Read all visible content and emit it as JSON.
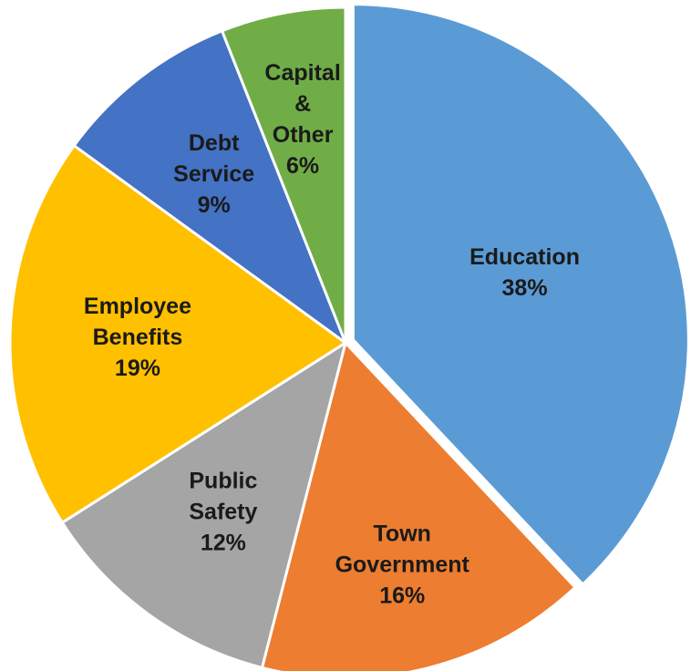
{
  "chart_data": {
    "type": "pie",
    "title": "",
    "slices": [
      {
        "name": "Education",
        "label_lines": [
          "Education",
          "38%"
        ],
        "value": 38,
        "color": "#5b9bd5",
        "exploded": true
      },
      {
        "name": "Town Government",
        "label_lines": [
          "Town",
          "Government",
          "16%"
        ],
        "value": 16,
        "color": "#ed7d31",
        "exploded": false
      },
      {
        "name": "Public Safety",
        "label_lines": [
          "Public",
          "Safety",
          "12%"
        ],
        "value": 12,
        "color": "#a5a5a5",
        "exploded": false
      },
      {
        "name": "Employee Benefits",
        "label_lines": [
          "Employee",
          "Benefits",
          "19%"
        ],
        "value": 19,
        "color": "#ffc000",
        "exploded": false
      },
      {
        "name": "Debt Service",
        "label_lines": [
          "Debt",
          "Service",
          "9%"
        ],
        "value": 9,
        "color": "#4472c4",
        "exploded": false
      },
      {
        "name": "Capital & Other",
        "label_lines": [
          "Capital",
          "&",
          "Other",
          "6%"
        ],
        "value": 6,
        "color": "#70ad47",
        "exploded": false
      }
    ],
    "start_angle": "12 o'clock",
    "direction": "clockwise",
    "legend": "none",
    "data_labels": "inside"
  }
}
